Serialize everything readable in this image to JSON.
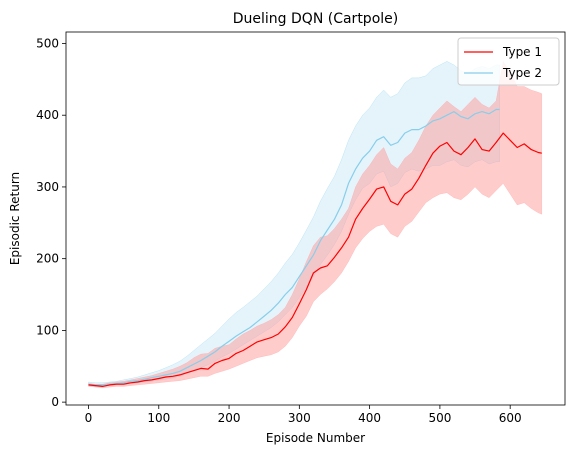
{
  "chart_data": {
    "type": "line",
    "title": "Dueling DQN (Cartpole)",
    "xlabel": "Episode Number",
    "ylabel": "Episodic Return",
    "xlim": [
      -32,
      678
    ],
    "ylim": [
      -4,
      516
    ],
    "xticks": [
      0,
      100,
      200,
      300,
      400,
      500,
      600
    ],
    "yticks": [
      0,
      100,
      200,
      300,
      400,
      500
    ],
    "grid": false,
    "legend_position": "top-right",
    "series": [
      {
        "name": "Type 1",
        "color": "#ff0000",
        "band_color": "#ff9a9a",
        "band_opacity": 0.5,
        "x": [
          0,
          10,
          20,
          30,
          40,
          50,
          60,
          70,
          80,
          90,
          100,
          110,
          120,
          130,
          140,
          150,
          160,
          170,
          180,
          190,
          200,
          210,
          220,
          230,
          240,
          250,
          260,
          270,
          280,
          290,
          300,
          310,
          320,
          330,
          340,
          350,
          360,
          370,
          380,
          390,
          400,
          410,
          420,
          430,
          440,
          450,
          460,
          470,
          480,
          490,
          500,
          510,
          520,
          530,
          540,
          550,
          560,
          570,
          580,
          590,
          600,
          610,
          620,
          630,
          640,
          645
        ],
        "mean": [
          24,
          23,
          22,
          24,
          25,
          25,
          27,
          28,
          30,
          31,
          33,
          35,
          36,
          38,
          41,
          44,
          47,
          46,
          54,
          58,
          61,
          68,
          72,
          78,
          84,
          87,
          90,
          95,
          105,
          118,
          137,
          157,
          180,
          187,
          190,
          202,
          215,
          230,
          255,
          270,
          283,
          297,
          300,
          280,
          275,
          290,
          297,
          312,
          330,
          347,
          357,
          362,
          350,
          345,
          355,
          367,
          352,
          350,
          362,
          375,
          365,
          355,
          360,
          352,
          348,
          347
        ],
        "lower": [
          22,
          21,
          20,
          21,
          22,
          22,
          23,
          24,
          25,
          26,
          27,
          28,
          29,
          30,
          32,
          34,
          36,
          36,
          40,
          43,
          46,
          50,
          54,
          58,
          62,
          64,
          66,
          70,
          78,
          90,
          106,
          120,
          140,
          150,
          158,
          168,
          180,
          196,
          215,
          228,
          238,
          245,
          248,
          235,
          230,
          245,
          252,
          265,
          278,
          285,
          290,
          292,
          285,
          282,
          290,
          300,
          290,
          285,
          295,
          305,
          290,
          275,
          278,
          270,
          264,
          262
        ],
        "upper": [
          26,
          25,
          25,
          27,
          28,
          29,
          31,
          33,
          35,
          37,
          40,
          43,
          46,
          50,
          55,
          62,
          67,
          68,
          75,
          78,
          80,
          88,
          95,
          100,
          106,
          110,
          115,
          122,
          132,
          150,
          172,
          196,
          218,
          230,
          232,
          242,
          255,
          270,
          300,
          318,
          330,
          345,
          355,
          332,
          325,
          340,
          348,
          365,
          385,
          400,
          410,
          420,
          412,
          405,
          415,
          425,
          415,
          410,
          420,
          475,
          460,
          440,
          440,
          435,
          432,
          430
        ]
      },
      {
        "name": "Type 2",
        "color": "#87ceeb",
        "band_color": "#87ceeb",
        "band_opacity": 0.22,
        "x": [
          0,
          10,
          20,
          30,
          40,
          50,
          60,
          70,
          80,
          90,
          100,
          110,
          120,
          130,
          140,
          150,
          160,
          170,
          180,
          190,
          200,
          210,
          220,
          230,
          240,
          250,
          260,
          270,
          280,
          290,
          300,
          310,
          320,
          330,
          340,
          350,
          360,
          370,
          380,
          390,
          400,
          410,
          420,
          430,
          440,
          450,
          460,
          470,
          480,
          490,
          500,
          510,
          520,
          530,
          540,
          550,
          560,
          570,
          580,
          585
        ],
        "mean": [
          25,
          24,
          24,
          25,
          26,
          27,
          29,
          30,
          32,
          34,
          36,
          38,
          40,
          43,
          48,
          53,
          58,
          64,
          70,
          78,
          85,
          92,
          98,
          104,
          112,
          120,
          128,
          138,
          150,
          160,
          175,
          190,
          205,
          225,
          240,
          255,
          275,
          305,
          325,
          340,
          350,
          365,
          370,
          358,
          362,
          375,
          380,
          380,
          385,
          392,
          395,
          400,
          405,
          398,
          395,
          402,
          405,
          402,
          408,
          408
        ],
        "lower": [
          23,
          22,
          22,
          23,
          24,
          25,
          26,
          27,
          28,
          29,
          31,
          32,
          34,
          36,
          40,
          44,
          48,
          52,
          57,
          63,
          68,
          74,
          80,
          86,
          92,
          98,
          104,
          112,
          122,
          132,
          146,
          160,
          175,
          192,
          205,
          220,
          238,
          262,
          282,
          298,
          305,
          318,
          322,
          300,
          305,
          320,
          325,
          322,
          325,
          330,
          330,
          335,
          338,
          330,
          328,
          335,
          338,
          332,
          335,
          335
        ],
        "upper": [
          28,
          27,
          27,
          28,
          29,
          31,
          33,
          35,
          38,
          41,
          44,
          48,
          52,
          57,
          64,
          72,
          80,
          88,
          96,
          106,
          116,
          125,
          132,
          140,
          148,
          158,
          168,
          180,
          194,
          206,
          222,
          240,
          258,
          280,
          298,
          315,
          338,
          365,
          385,
          400,
          410,
          425,
          435,
          425,
          430,
          445,
          452,
          452,
          455,
          465,
          470,
          475,
          470,
          462,
          458,
          465,
          468,
          465,
          470,
          470
        ]
      }
    ]
  }
}
